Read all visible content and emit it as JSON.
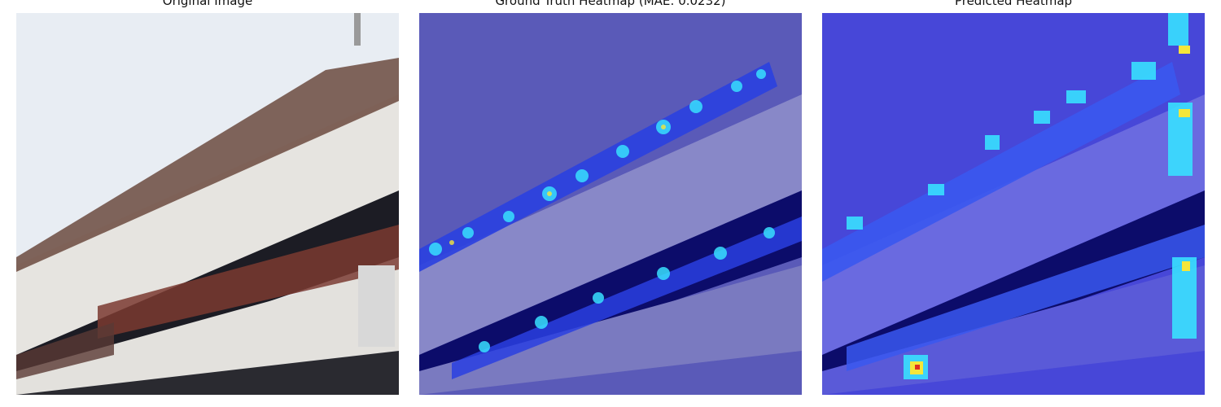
{
  "figure": {
    "panels": [
      {
        "title": "Original Image",
        "content": "photo"
      },
      {
        "title": "Ground Truth Heatmap (MAE: 0.0232)",
        "content": "ground-truth-overlay"
      },
      {
        "title": "Predicted Heatmap",
        "content": "predicted-overlay"
      }
    ]
  },
  "colors": {
    "sky": "#e8edf3",
    "building": "#e6e4e0",
    "shadow": "#1c1c24",
    "crowd": "#6b4a3e",
    "overlay_low": "#3f3fd2",
    "overlay_dark": "#0c0c6a",
    "heat_mid": "#38e0ff",
    "heat_high": "#f5e63a",
    "heat_peak": "#e03020"
  }
}
